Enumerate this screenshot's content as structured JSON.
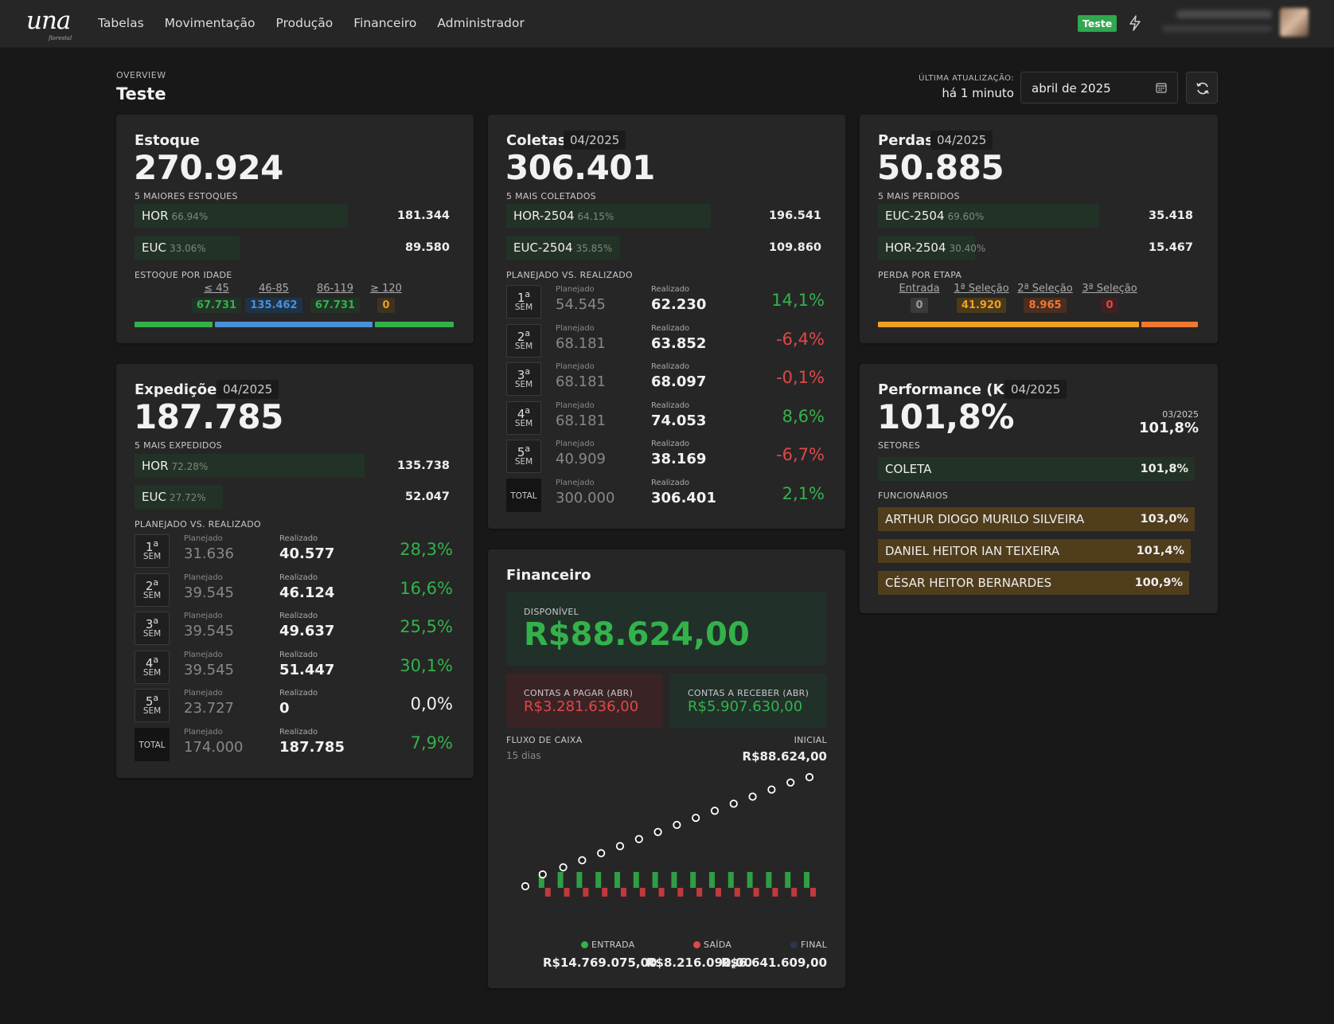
{
  "nav": {
    "logo": "una",
    "logo_sub": "florestal",
    "items": [
      "Tabelas",
      "Movimentação",
      "Produção",
      "Financeiro",
      "Administrador"
    ],
    "env_badge": "Teste",
    "env_color": "#2fa84f"
  },
  "header": {
    "overview_label": "OVERVIEW",
    "title": "Teste",
    "update_label": "ÚLTIMA ATUALIZAÇÃO:",
    "update_value": "há 1 minuto",
    "date_value": "abril de 2025"
  },
  "estoque": {
    "title": "Estoque",
    "total": "270.924",
    "top_label": "5 MAIORES ESTOQUES",
    "items": [
      {
        "name": "HOR",
        "pct": "66.94%",
        "value": "181.344",
        "fraction": 0.6694
      },
      {
        "name": "EUC",
        "pct": "33.06%",
        "value": "89.580",
        "fraction": 0.3306
      }
    ],
    "age_label": "ESTOQUE POR IDADE",
    "ages": [
      {
        "range": "≤ 45",
        "value": "67.731",
        "color": "#33b24a"
      },
      {
        "range": "46-85",
        "value": "135.462",
        "color": "#4a90d9"
      },
      {
        "range": "86-119",
        "value": "67.731",
        "color": "#33b24a"
      },
      {
        "range": "≥ 120",
        "value": "0",
        "color": "#e6a020"
      }
    ]
  },
  "expedicoes": {
    "title": "Expedições",
    "period": "04/2025",
    "total": "187.785",
    "top_label": "5 MAIS EXPEDIDOS",
    "items": [
      {
        "name": "HOR",
        "pct": "72.28%",
        "value": "135.738",
        "fraction": 0.7228
      },
      {
        "name": "EUC",
        "pct": "27.72%",
        "value": "52.047",
        "fraction": 0.2772
      }
    ],
    "plan_label": "PLANEJADO VS. REALIZADO",
    "planned_label": "Planejado",
    "realized_label": "Realizado",
    "weeks": [
      {
        "n": "1",
        "sup": "a",
        "sem": "SEM",
        "planned": "31.636",
        "realized": "40.577",
        "pct": "28,3%",
        "sign": "pos"
      },
      {
        "n": "2",
        "sup": "a",
        "sem": "SEM",
        "planned": "39.545",
        "realized": "46.124",
        "pct": "16,6%",
        "sign": "pos"
      },
      {
        "n": "3",
        "sup": "a",
        "sem": "SEM",
        "planned": "39.545",
        "realized": "49.637",
        "pct": "25,5%",
        "sign": "pos"
      },
      {
        "n": "4",
        "sup": "a",
        "sem": "SEM",
        "planned": "39.545",
        "realized": "51.447",
        "pct": "30,1%",
        "sign": "pos"
      },
      {
        "n": "5",
        "sup": "a",
        "sem": "SEM",
        "planned": "23.727",
        "realized": "0",
        "pct": "0,0%",
        "sign": "zero"
      }
    ],
    "total_row": {
      "label": "TOTAL",
      "planned": "174.000",
      "realized": "187.785",
      "pct": "7,9%",
      "sign": "pos"
    }
  },
  "coletas": {
    "title": "Coletas",
    "period": "04/2025",
    "total": "306.401",
    "top_label": "5 MAIS COLETADOS",
    "items": [
      {
        "name": "HOR-2504",
        "pct": "64.15%",
        "value": "196.541",
        "fraction": 0.6415
      },
      {
        "name": "EUC-2504",
        "pct": "35.85%",
        "value": "109.860",
        "fraction": 0.3585
      }
    ],
    "plan_label": "PLANEJADO VS. REALIZADO",
    "planned_label": "Planejado",
    "realized_label": "Realizado",
    "weeks": [
      {
        "n": "1",
        "sup": "a",
        "sem": "SEM",
        "planned": "54.545",
        "realized": "62.230",
        "pct": "14,1%",
        "sign": "pos"
      },
      {
        "n": "2",
        "sup": "a",
        "sem": "SEM",
        "planned": "68.181",
        "realized": "63.852",
        "pct": "-6,4%",
        "sign": "neg"
      },
      {
        "n": "3",
        "sup": "a",
        "sem": "SEM",
        "planned": "68.181",
        "realized": "68.097",
        "pct": "-0,1%",
        "sign": "neg"
      },
      {
        "n": "4",
        "sup": "a",
        "sem": "SEM",
        "planned": "68.181",
        "realized": "74.053",
        "pct": "8,6%",
        "sign": "pos"
      },
      {
        "n": "5",
        "sup": "a",
        "sem": "SEM",
        "planned": "40.909",
        "realized": "38.169",
        "pct": "-6,7%",
        "sign": "neg"
      }
    ],
    "total_row": {
      "label": "TOTAL",
      "planned": "300.000",
      "realized": "306.401",
      "pct": "2,1%",
      "sign": "pos"
    }
  },
  "perdas": {
    "title": "Perdas",
    "period": "04/2025",
    "total": "50.885",
    "top_label": "5 MAIS PERDIDOS",
    "items": [
      {
        "name": "EUC-2504",
        "pct": "69.60%",
        "value": "35.418",
        "fraction": 0.696
      },
      {
        "name": "HOR-2504",
        "pct": "30.40%",
        "value": "15.467",
        "fraction": 0.304
      }
    ],
    "stage_label": "PERDA POR ETAPA",
    "stages": [
      {
        "name": "Entrada",
        "value": "0",
        "color": "#9a9a9a",
        "bg": "#3a3a3a"
      },
      {
        "name": "1ª Seleção",
        "value": "41.920",
        "color": "#f0a020",
        "bg": "#4a3a1c"
      },
      {
        "name": "2ª Seleção",
        "value": "8.965",
        "color": "#f07830",
        "bg": "#4a2e20"
      },
      {
        "name": "3ª Seleção",
        "value": "0",
        "color": "#e04848",
        "bg": "#3e2222"
      }
    ]
  },
  "kpi": {
    "title": "Performance (KPI)",
    "period": "04/2025",
    "total": "101,8%",
    "prev_period": "03/2025",
    "prev_value": "101,8%",
    "sectors_label": "SETORES",
    "sectors": [
      {
        "name": "COLETA",
        "value": "101,8%"
      }
    ],
    "employees_label": "FUNCIONÁRIOS",
    "employees": [
      {
        "name": "ARTHUR DIOGO MURILO SILVEIRA",
        "value": "103,0%"
      },
      {
        "name": "DANIEL HEITOR IAN TEIXEIRA",
        "value": "101,4%"
      },
      {
        "name": "CÉSAR HEITOR BERNARDES",
        "value": "100,9%"
      }
    ]
  },
  "financeiro": {
    "title": "Financeiro",
    "available_label": "DISPONÍVEL",
    "available_value": "R$88.624,00",
    "payable_label": "CONTAS A PAGAR (ABR)",
    "payable_value": "R$3.281.636,00",
    "receivable_label": "CONTAS A RECEBER (ABR)",
    "receivable_value": "R$5.907.630,00",
    "flow_label": "FLUXO DE CAIXA",
    "flow_sub": "15 dias",
    "initial_label": "INICIAL",
    "initial_value": "R$88.624,00",
    "legend": [
      {
        "label": "ENTRADA",
        "value": "R$14.769.075,00",
        "color": "#33b24a"
      },
      {
        "label": "SAÍDA",
        "value": "R$8.216.090,00",
        "color": "#e04848"
      },
      {
        "label": "FINAL",
        "value": "R$6.641.609,00",
        "color": "#2a3550"
      }
    ],
    "colors": {
      "in": "#2f9e44",
      "out": "#c0393b",
      "point": "#ffffff"
    }
  },
  "chart_data": {
    "type": "bar",
    "series": [
      {
        "name": "ENTRADA",
        "values": [
          1.0,
          1.0,
          1.0,
          1.0,
          1.0,
          1.0,
          1.0,
          1.0,
          1.0,
          1.0,
          1.0,
          1.0,
          1.0,
          1.0,
          1.0,
          1.0
        ]
      },
      {
        "name": "SAÍDA",
        "values": [
          0.55,
          0.55,
          0.55,
          0.55,
          0.55,
          0.55,
          0.55,
          0.55,
          0.55,
          0.55,
          0.55,
          0.55,
          0.55,
          0.55,
          0.55,
          0.55
        ]
      },
      {
        "name": "FINAL",
        "values": [
          0.0,
          0.45,
          0.9,
          1.35,
          1.8,
          2.25,
          2.7,
          3.15,
          3.6,
          4.05,
          4.5,
          4.95,
          5.4,
          5.85,
          6.3,
          6.64
        ]
      }
    ],
    "grid": false
  }
}
